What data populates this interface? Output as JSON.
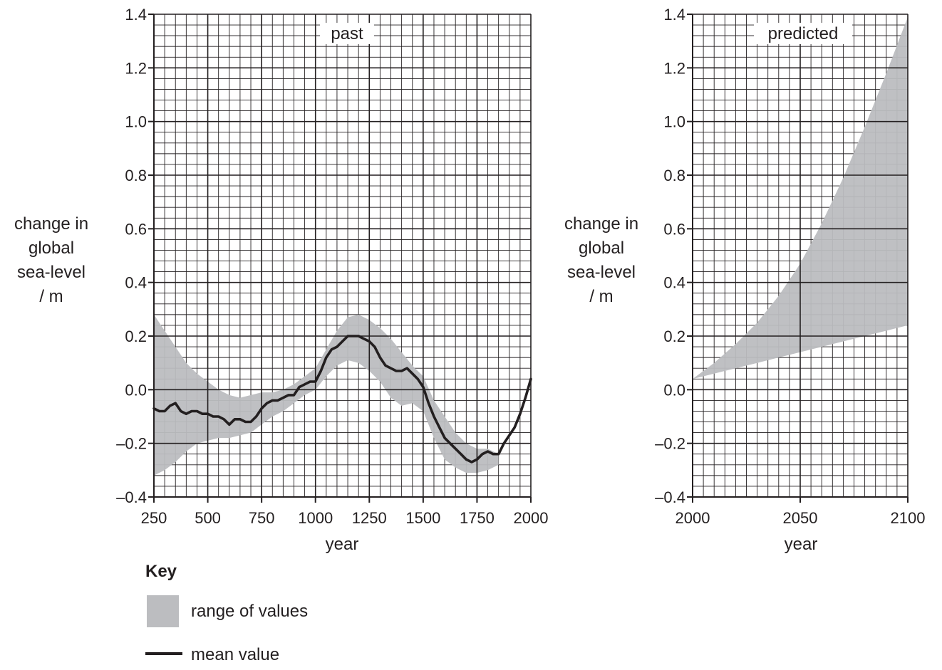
{
  "chart_data": [
    {
      "type": "area",
      "title": "past",
      "xlabel": "year",
      "ylabel": [
        "change in",
        "global",
        "sea-level",
        "/ m"
      ],
      "xlim": [
        250,
        2000
      ],
      "ylim": [
        -0.4,
        1.4
      ],
      "xticks": [
        250,
        500,
        750,
        1000,
        1250,
        1500,
        1750,
        2000
      ],
      "xtick_labels": [
        "250",
        "500",
        "750",
        "1000",
        "1250",
        "1500",
        "1750",
        "2000"
      ],
      "yticks": [
        -0.4,
        -0.2,
        0.0,
        0.2,
        0.4,
        0.6,
        0.8,
        1.0,
        1.2,
        1.4
      ],
      "ytick_labels": [
        "–0.4",
        "–0.2",
        "0.0",
        "0.2",
        "0.4",
        "0.6",
        "0.8",
        "1.0",
        "1.2",
        "1.4"
      ],
      "grid": true,
      "series": [
        {
          "name": "range of values",
          "kind": "band",
          "x": [
            250,
            300,
            350,
            400,
            450,
            500,
            550,
            600,
            650,
            700,
            750,
            800,
            850,
            900,
            950,
            1000,
            1050,
            1100,
            1150,
            1200,
            1250,
            1300,
            1350,
            1400,
            1450,
            1500,
            1550,
            1600,
            1650,
            1700,
            1750,
            1800,
            1850
          ],
          "upper": [
            0.28,
            0.22,
            0.16,
            0.1,
            0.06,
            0.03,
            0.0,
            -0.02,
            -0.03,
            -0.02,
            -0.01,
            -0.01,
            0.0,
            0.02,
            0.05,
            0.08,
            0.15,
            0.22,
            0.27,
            0.28,
            0.26,
            0.23,
            0.19,
            0.14,
            0.09,
            0.05,
            -0.04,
            -0.1,
            -0.16,
            -0.2,
            -0.22,
            -0.22,
            -0.24
          ],
          "lower": [
            -0.32,
            -0.3,
            -0.27,
            -0.23,
            -0.2,
            -0.19,
            -0.18,
            -0.18,
            -0.17,
            -0.16,
            -0.13,
            -0.1,
            -0.08,
            -0.05,
            -0.02,
            0.0,
            0.05,
            0.09,
            0.11,
            0.1,
            0.07,
            0.03,
            -0.03,
            -0.06,
            -0.05,
            -0.08,
            -0.18,
            -0.26,
            -0.29,
            -0.31,
            -0.31,
            -0.3,
            -0.28
          ]
        },
        {
          "name": "mean value",
          "kind": "line",
          "x": [
            250,
            275,
            300,
            325,
            350,
            375,
            400,
            425,
            450,
            475,
            500,
            525,
            550,
            575,
            600,
            625,
            650,
            675,
            700,
            725,
            750,
            775,
            800,
            825,
            850,
            875,
            900,
            925,
            950,
            975,
            1000,
            1025,
            1050,
            1075,
            1100,
            1125,
            1150,
            1175,
            1200,
            1225,
            1250,
            1275,
            1300,
            1325,
            1350,
            1375,
            1400,
            1425,
            1450,
            1475,
            1500,
            1525,
            1550,
            1575,
            1600,
            1625,
            1650,
            1675,
            1700,
            1725,
            1750,
            1775,
            1800,
            1825,
            1850,
            1875,
            1900,
            1925,
            1950,
            1975,
            2000
          ],
          "values": [
            -0.07,
            -0.08,
            -0.08,
            -0.06,
            -0.05,
            -0.08,
            -0.09,
            -0.08,
            -0.08,
            -0.09,
            -0.09,
            -0.1,
            -0.1,
            -0.11,
            -0.13,
            -0.11,
            -0.11,
            -0.12,
            -0.12,
            -0.1,
            -0.07,
            -0.05,
            -0.04,
            -0.04,
            -0.03,
            -0.02,
            -0.02,
            0.01,
            0.02,
            0.03,
            0.03,
            0.07,
            0.12,
            0.15,
            0.16,
            0.18,
            0.2,
            0.2,
            0.2,
            0.19,
            0.18,
            0.16,
            0.12,
            0.09,
            0.08,
            0.07,
            0.07,
            0.08,
            0.06,
            0.04,
            0.01,
            -0.05,
            -0.1,
            -0.14,
            -0.18,
            -0.2,
            -0.22,
            -0.24,
            -0.26,
            -0.27,
            -0.26,
            -0.24,
            -0.23,
            -0.24,
            -0.24,
            -0.2,
            -0.17,
            -0.14,
            -0.09,
            -0.03,
            0.04
          ]
        }
      ]
    },
    {
      "type": "area",
      "title": "predicted",
      "xlabel": "year",
      "ylabel": [
        "change in",
        "global",
        "sea-level",
        "/ m"
      ],
      "xlim": [
        2000,
        2100
      ],
      "ylim": [
        -0.4,
        1.4
      ],
      "xticks": [
        2000,
        2050,
        2100
      ],
      "xtick_labels": [
        "2000",
        "2050",
        "2100"
      ],
      "yticks": [
        -0.4,
        -0.2,
        0.0,
        0.2,
        0.4,
        0.6,
        0.8,
        1.0,
        1.2,
        1.4
      ],
      "ytick_labels": [
        "–0.4",
        "–0.2",
        "0.0",
        "0.2",
        "0.4",
        "0.6",
        "0.8",
        "1.0",
        "1.2",
        "1.4"
      ],
      "grid": true,
      "series": [
        {
          "name": "range of values",
          "kind": "band",
          "x": [
            2000,
            2010,
            2020,
            2030,
            2040,
            2050,
            2060,
            2070,
            2080,
            2090,
            2100
          ],
          "upper": [
            0.04,
            0.1,
            0.17,
            0.25,
            0.35,
            0.47,
            0.62,
            0.79,
            0.98,
            1.18,
            1.39
          ],
          "lower": [
            0.04,
            0.06,
            0.08,
            0.1,
            0.12,
            0.14,
            0.16,
            0.18,
            0.2,
            0.22,
            0.24
          ]
        }
      ]
    }
  ],
  "key": {
    "title": "Key",
    "range_label": "range of values",
    "mean_label": "mean value",
    "band_color": "#bcbdc0",
    "line_color": "#231f20"
  },
  "colors": {
    "band": "#bcbdc0",
    "line": "#231f20",
    "grid": "#231f20"
  }
}
